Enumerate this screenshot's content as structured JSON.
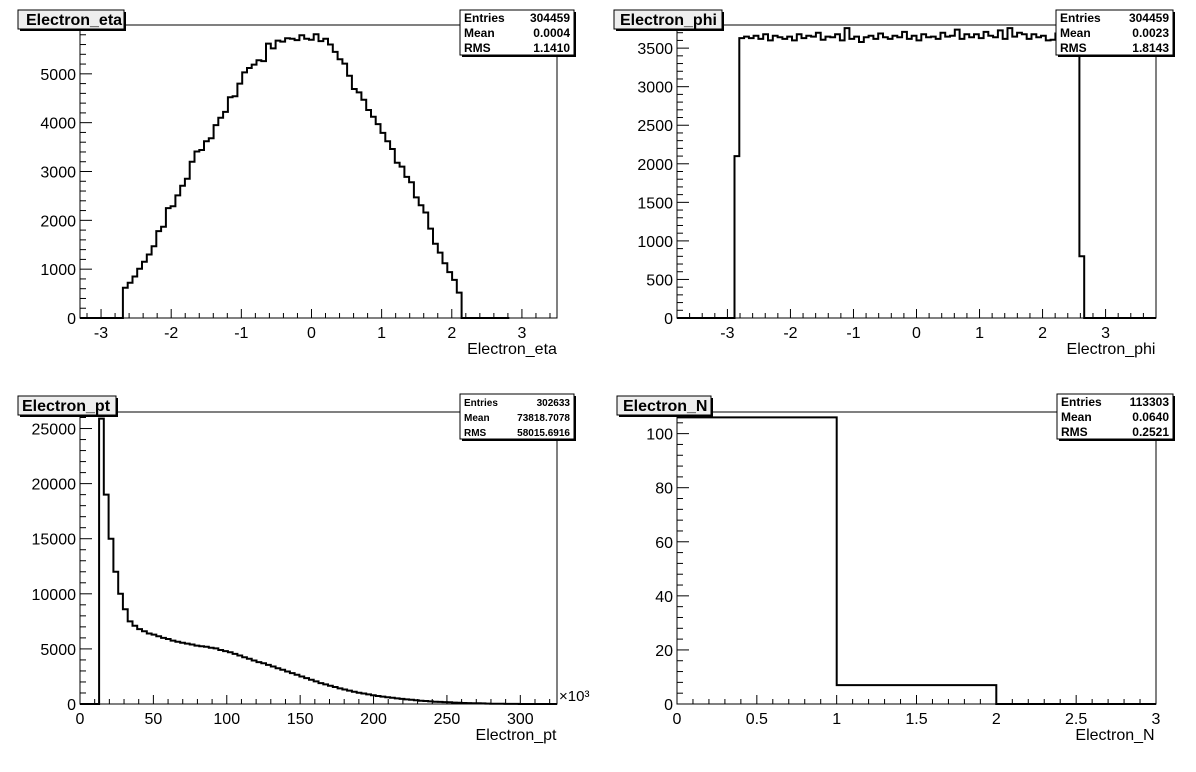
{
  "chart_data": [
    {
      "type": "histogram",
      "title": "Electron_eta",
      "xlabel": "Electron_eta",
      "ylabel": "",
      "xlim": [
        -3.3,
        3.5
      ],
      "ylim": [
        0,
        6000
      ],
      "x_ticks": [
        -3,
        -2,
        -1,
        0,
        1,
        2,
        3
      ],
      "y_ticks": [
        0,
        1000,
        2000,
        3000,
        4000,
        5000,
        6000
      ],
      "bin_width": 0.068,
      "values": [
        0,
        0,
        0,
        0,
        0,
        0,
        0,
        0,
        0,
        620,
        720,
        850,
        1010,
        1150,
        1300,
        1470,
        1780,
        1870,
        2250,
        2290,
        2510,
        2710,
        2850,
        3200,
        3410,
        3440,
        3620,
        3680,
        3950,
        4100,
        4220,
        4520,
        4540,
        4800,
        5030,
        5120,
        5190,
        5280,
        5260,
        5620,
        5520,
        5680,
        5660,
        5730,
        5720,
        5690,
        5790,
        5720,
        5700,
        5810,
        5670,
        5720,
        5600,
        5450,
        5300,
        5210,
        4960,
        4690,
        4620,
        4470,
        4260,
        4120,
        3970,
        3790,
        3620,
        3460,
        3180,
        3100,
        2890,
        2780,
        2470,
        2310,
        2160,
        1830,
        1520,
        1340,
        1120,
        940,
        780,
        520,
        0,
        0,
        0,
        0,
        0,
        0,
        0,
        0,
        0,
        0
      ],
      "stats": {
        "entries": "304459",
        "mean": "0.0004",
        "rms": "1.1410"
      },
      "grid": false,
      "legend_position": "top-right"
    },
    {
      "type": "histogram",
      "title": "Electron_phi",
      "xlabel": "Electron_phi",
      "ylabel": "",
      "xlim": [
        -3.8,
        3.8
      ],
      "ylim": [
        0,
        3800
      ],
      "x_ticks": [
        -3,
        -2,
        -1,
        0,
        1,
        2,
        3
      ],
      "y_ticks": [
        0,
        500,
        1000,
        1500,
        2000,
        2500,
        3000,
        3500
      ],
      "bin_width": 0.076,
      "values": [
        0,
        0,
        0,
        0,
        0,
        0,
        0,
        0,
        0,
        0,
        0,
        0,
        2100,
        3630,
        3650,
        3630,
        3660,
        3620,
        3680,
        3600,
        3660,
        3640,
        3620,
        3650,
        3600,
        3680,
        3630,
        3660,
        3650,
        3700,
        3610,
        3650,
        3640,
        3680,
        3600,
        3760,
        3620,
        3650,
        3580,
        3640,
        3660,
        3620,
        3690,
        3640,
        3620,
        3660,
        3640,
        3710,
        3620,
        3660,
        3600,
        3680,
        3640,
        3650,
        3620,
        3700,
        3650,
        3660,
        3740,
        3620,
        3680,
        3640,
        3680,
        3630,
        3710,
        3660,
        3640,
        3730,
        3620,
        3760,
        3650,
        3700,
        3680,
        3620,
        3680,
        3640,
        3660,
        3600,
        3610,
        3690,
        3620,
        3700,
        3600,
        3590,
        800,
        0,
        0,
        0,
        0,
        0,
        0,
        0,
        0,
        0,
        0,
        0,
        0,
        0,
        0,
        0
      ],
      "stats": {
        "entries": "304459",
        "mean": "0.0023",
        "rms": "1.8143"
      },
      "grid": false,
      "legend_position": "top-right"
    },
    {
      "type": "histogram",
      "title": "Electron_pt",
      "xlabel": "Electron_pt",
      "ylabel": "",
      "axis_multiplier": "×10³",
      "xlim": [
        0,
        325
      ],
      "ylim": [
        0,
        26500
      ],
      "x_ticks": [
        0,
        50,
        100,
        150,
        200,
        250,
        300
      ],
      "y_ticks": [
        0,
        5000,
        10000,
        15000,
        20000,
        25000
      ],
      "bin_width": 3.25,
      "values": [
        0,
        0,
        0,
        0,
        25900,
        19000,
        15000,
        12000,
        10000,
        8600,
        7500,
        7100,
        6800,
        6600,
        6400,
        6300,
        6150,
        6000,
        5900,
        5750,
        5650,
        5550,
        5480,
        5400,
        5300,
        5250,
        5200,
        5100,
        5050,
        4900,
        4800,
        4700,
        4550,
        4400,
        4250,
        4100,
        3950,
        3800,
        3700,
        3550,
        3400,
        3250,
        3100,
        2950,
        2800,
        2650,
        2500,
        2350,
        2200,
        2050,
        1900,
        1780,
        1660,
        1540,
        1420,
        1320,
        1220,
        1120,
        1030,
        950,
        870,
        800,
        730,
        670,
        610,
        560,
        510,
        460,
        420,
        380,
        340,
        300,
        270,
        240,
        210,
        190,
        170,
        150,
        130,
        110,
        95,
        80,
        70,
        60,
        50,
        40,
        30,
        20,
        15,
        10,
        8,
        5,
        4,
        3,
        2,
        1,
        0,
        0,
        0,
        0
      ],
      "stats": {
        "entries": "302633",
        "mean": "73818.7078",
        "rms": "58015.6916"
      },
      "grid": false,
      "legend_position": "top-right"
    },
    {
      "type": "histogram",
      "title": "Electron_N",
      "xlabel": "Electron_N",
      "ylabel": "",
      "xlim": [
        0,
        3
      ],
      "ylim": [
        0,
        108
      ],
      "x_ticks": [
        0,
        0.5,
        1,
        1.5,
        2,
        2.5,
        3
      ],
      "y_ticks": [
        0,
        20,
        40,
        60,
        80,
        100
      ],
      "bin_width": 1,
      "values": [
        106,
        7,
        0
      ],
      "stats": {
        "entries": "113303",
        "mean": "0.0640",
        "rms": "0.2521"
      },
      "grid": false,
      "legend_position": "top-right"
    }
  ],
  "stats_labels": {
    "entries": "Entries",
    "mean": "Mean",
    "rms": "RMS"
  },
  "colors": {
    "line": "#000000",
    "frame": "#000000",
    "title_box": "#eeeeee",
    "background": "#ffffff"
  }
}
